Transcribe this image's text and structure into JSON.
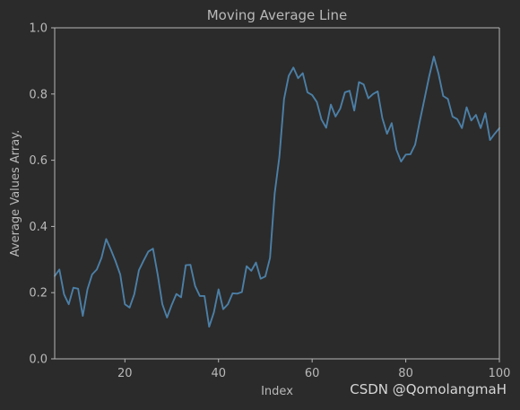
{
  "colors": {
    "background": "#2b2b2b",
    "axes_face": "#2b2b2b",
    "spine": "#b5b5b5",
    "text": "#b9b9b9",
    "line": "#4c7fa6",
    "watermark": "#d6d6d6"
  },
  "watermark": "CSDN @QomolangmaH",
  "chart_data": {
    "type": "line",
    "title": "Moving Average Line",
    "xlabel": "Index",
    "ylabel": "Average Values Array.",
    "xlim": [
      5,
      100
    ],
    "ylim": [
      0.0,
      1.0
    ],
    "xticks": [
      20,
      40,
      60,
      80,
      100
    ],
    "xtick_labels": [
      "20",
      "40",
      "60",
      "80",
      "100"
    ],
    "yticks": [
      0.0,
      0.2,
      0.4,
      0.6,
      0.8,
      1.0
    ],
    "ytick_labels": [
      "0.0",
      "0.2",
      "0.4",
      "0.6",
      "0.8",
      "1.0"
    ],
    "grid": false,
    "legend": "none",
    "series": [
      {
        "x": [
          5,
          6,
          7,
          8,
          9,
          10,
          11,
          12,
          13,
          14,
          15,
          16,
          17,
          18,
          19,
          20,
          21,
          22,
          23,
          24,
          25,
          26,
          27,
          28,
          29,
          30,
          31,
          32,
          33,
          34,
          35,
          36,
          37,
          38,
          39,
          40,
          41,
          42,
          43,
          44,
          45,
          46,
          47,
          48,
          49,
          50,
          51,
          52,
          53,
          54,
          55,
          56,
          57,
          58,
          59,
          60,
          61,
          62,
          63,
          64,
          65,
          66,
          67,
          68,
          69,
          70,
          71,
          72,
          73,
          74,
          75,
          76,
          77,
          78,
          79,
          80,
          81,
          82,
          83,
          84,
          85,
          86,
          87,
          88,
          89,
          90,
          91,
          92,
          93,
          94,
          95,
          96,
          97,
          98,
          99,
          100
        ],
        "y": [
          0.25,
          0.27,
          0.195,
          0.165,
          0.215,
          0.212,
          0.13,
          0.21,
          0.255,
          0.27,
          0.305,
          0.362,
          0.33,
          0.295,
          0.255,
          0.165,
          0.155,
          0.195,
          0.268,
          0.297,
          0.324,
          0.333,
          0.255,
          0.165,
          0.125,
          0.163,
          0.196,
          0.186,
          0.283,
          0.284,
          0.22,
          0.19,
          0.19,
          0.097,
          0.14,
          0.21,
          0.15,
          0.165,
          0.198,
          0.197,
          0.202,
          0.28,
          0.266,
          0.291,
          0.242,
          0.249,
          0.305,
          0.5,
          0.61,
          0.785,
          0.855,
          0.88,
          0.848,
          0.863,
          0.805,
          0.797,
          0.776,
          0.723,
          0.698,
          0.768,
          0.732,
          0.756,
          0.805,
          0.81,
          0.75,
          0.836,
          0.829,
          0.787,
          0.8,
          0.808,
          0.727,
          0.68,
          0.712,
          0.632,
          0.596,
          0.617,
          0.618,
          0.647,
          0.718,
          0.785,
          0.853,
          0.913,
          0.861,
          0.794,
          0.785,
          0.732,
          0.724,
          0.697,
          0.76,
          0.72,
          0.737,
          0.697,
          0.742,
          0.661,
          0.68,
          0.697
        ]
      }
    ]
  }
}
